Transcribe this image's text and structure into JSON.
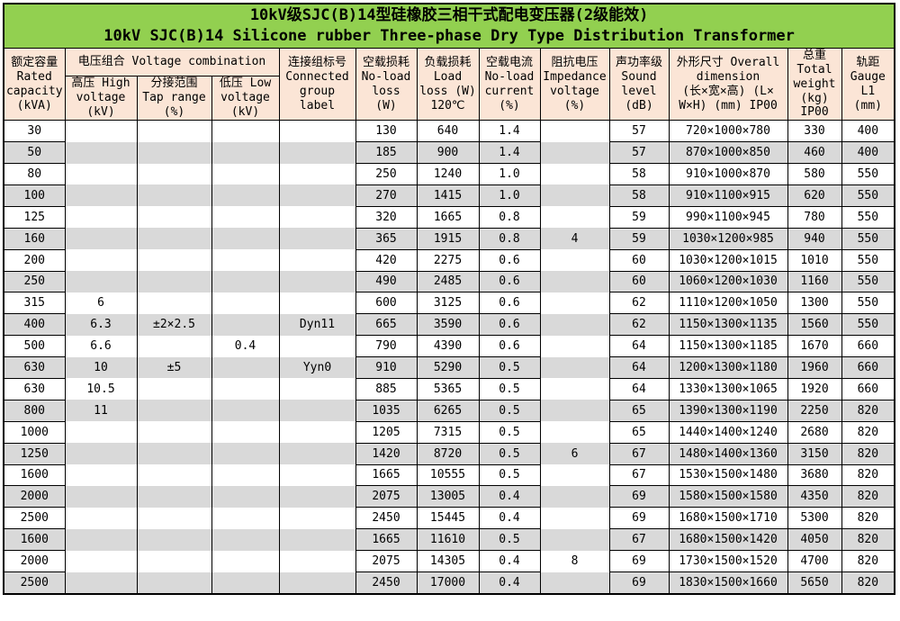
{
  "title": {
    "line1": "10kV级SJC(B)14型硅橡胶三相干式配电变压器(2级能效)",
    "line2": "10kV SJC(B)14 Silicone rubber Three-phase Dry Type Distribution Transformer"
  },
  "colors": {
    "title_bg": "#92D050",
    "header_bg": "#FBE5D6",
    "stripe_bg": "#D9D9D9",
    "border": "#000000"
  },
  "header": {
    "rated_capacity": "额定容量\nRated\ncapacity\n(kVA)",
    "voltage_combination": "电压组合 Voltage combination",
    "high_voltage": "高压 High\nvoltage\n(kV)",
    "tap_range": "分接范围\nTap range\n(%)",
    "low_voltage": "低压 Low\nvoltage\n(kV)",
    "connected_group": "连接组标号\nConnected\ngroup\nlabel",
    "no_load_loss": "空载损耗\nNo-load\nloss\n(W)",
    "load_loss": "负载损耗\nLoad\nloss (W)\n120℃",
    "no_load_current": "空载电流\nNo-load\ncurrent\n(%)",
    "impedance_voltage": "阻抗电压\nImpedance\nvoltage\n(%)",
    "sound_level": "声功率级\nSound\nlevel\n(dB)",
    "overall_dimension": "外形尺寸 Overall\ndimension\n(长×宽×高) (L×\nW×H) (mm) IP00",
    "total_weight": "总重\nTotal\nweight\n(kg)\nIP00",
    "gauge": "轨距\nGauge\nL1\n(mm)"
  },
  "table": {
    "col_keys": [
      "rated-capacity",
      "high-voltage",
      "tap-range",
      "low-voltage",
      "connected-group",
      "no-load-loss",
      "load-loss",
      "no-load-current",
      "impedance-voltage",
      "sound-level",
      "overall-dimension",
      "total-weight",
      "gauge"
    ],
    "merged_cols": [
      1,
      2,
      3,
      4,
      8
    ],
    "rows": [
      [
        "30",
        "",
        "",
        "",
        "",
        "130",
        "640",
        "1.4",
        "",
        "57",
        "720×1000×780",
        "330",
        "400"
      ],
      [
        "50",
        "",
        "",
        "",
        "",
        "185",
        "900",
        "1.4",
        "",
        "57",
        "870×1000×850",
        "460",
        "400"
      ],
      [
        "80",
        "",
        "",
        "",
        "",
        "250",
        "1240",
        "1.0",
        "",
        "58",
        "910×1000×870",
        "580",
        "550"
      ],
      [
        "100",
        "",
        "",
        "",
        "",
        "270",
        "1415",
        "1.0",
        "",
        "58",
        "910×1100×915",
        "620",
        "550"
      ],
      [
        "125",
        "",
        "",
        "",
        "",
        "320",
        "1665",
        "0.8",
        "",
        "59",
        "990×1100×945",
        "780",
        "550"
      ],
      [
        "160",
        "",
        "",
        "",
        "",
        "365",
        "1915",
        "0.8",
        "4",
        "59",
        "1030×1200×985",
        "940",
        "550"
      ],
      [
        "200",
        "",
        "",
        "",
        "",
        "420",
        "2275",
        "0.6",
        "",
        "60",
        "1030×1200×1015",
        "1010",
        "550"
      ],
      [
        "250",
        "",
        "",
        "",
        "",
        "490",
        "2485",
        "0.6",
        "",
        "60",
        "1060×1200×1030",
        "1160",
        "550"
      ],
      [
        "315",
        "6",
        "",
        "",
        "",
        "600",
        "3125",
        "0.6",
        "",
        "62",
        "1110×1200×1050",
        "1300",
        "550"
      ],
      [
        "400",
        "6.3",
        "±2×2.5",
        "",
        "Dyn11",
        "665",
        "3590",
        "0.6",
        "",
        "62",
        "1150×1300×1135",
        "1560",
        "550"
      ],
      [
        "500",
        "6.6",
        "",
        "0.4",
        "",
        "790",
        "4390",
        "0.6",
        "",
        "64",
        "1150×1300×1185",
        "1670",
        "660"
      ],
      [
        "630",
        "10",
        "±5",
        "",
        "Yyn0",
        "910",
        "5290",
        "0.5",
        "",
        "64",
        "1200×1300×1180",
        "1960",
        "660"
      ],
      [
        "630",
        "10.5",
        "",
        "",
        "",
        "885",
        "5365",
        "0.5",
        "",
        "64",
        "1330×1300×1065",
        "1920",
        "660"
      ],
      [
        "800",
        "11",
        "",
        "",
        "",
        "1035",
        "6265",
        "0.5",
        "",
        "65",
        "1390×1300×1190",
        "2250",
        "820"
      ],
      [
        "1000",
        "",
        "",
        "",
        "",
        "1205",
        "7315",
        "0.5",
        "",
        "65",
        "1440×1400×1240",
        "2680",
        "820"
      ],
      [
        "1250",
        "",
        "",
        "",
        "",
        "1420",
        "8720",
        "0.5",
        "6",
        "67",
        "1480×1400×1360",
        "3150",
        "820"
      ],
      [
        "1600",
        "",
        "",
        "",
        "",
        "1665",
        "10555",
        "0.5",
        "",
        "67",
        "1530×1500×1480",
        "3680",
        "820"
      ],
      [
        "2000",
        "",
        "",
        "",
        "",
        "2075",
        "13005",
        "0.4",
        "",
        "69",
        "1580×1500×1580",
        "4350",
        "820"
      ],
      [
        "2500",
        "",
        "",
        "",
        "",
        "2450",
        "15445",
        "0.4",
        "",
        "69",
        "1680×1500×1710",
        "5300",
        "820"
      ],
      [
        "1600",
        "",
        "",
        "",
        "",
        "1665",
        "11610",
        "0.5",
        "",
        "67",
        "1680×1500×1420",
        "4050",
        "820"
      ],
      [
        "2000",
        "",
        "",
        "",
        "",
        "2075",
        "14305",
        "0.4",
        "8",
        "69",
        "1730×1500×1520",
        "4700",
        "820"
      ],
      [
        "2500",
        "",
        "",
        "",
        "",
        "2450",
        "17000",
        "0.4",
        "",
        "69",
        "1830×1500×1660",
        "5650",
        "820"
      ]
    ]
  }
}
